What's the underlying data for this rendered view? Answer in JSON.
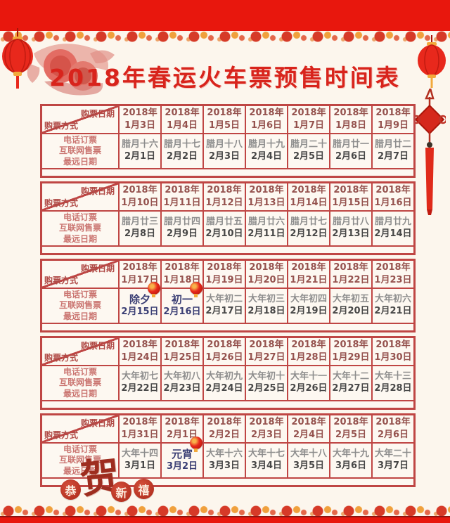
{
  "title": "2018年春运火车票预售时间表",
  "header": {
    "corner_date": "购票日期",
    "corner_method": "购票方式",
    "year_label": "2018年"
  },
  "row_labels": {
    "phone": "电话订票",
    "internet": "互联网售票",
    "farthest": "最远日期"
  },
  "footer_seal": {
    "char1": "恭",
    "char2": "贺",
    "char3": "新",
    "char4": "禧"
  },
  "colors": {
    "band_red": "#e8170d",
    "table_border": "#bf4644",
    "title_red": "#d8241c",
    "header_text": "#95524e",
    "label_text": "#ca7470",
    "lunar_gray": "#8d8d8d",
    "date_dark": "#474747",
    "special_navy": "#3a3e74",
    "background": "#fcf6ed"
  },
  "tables": [
    {
      "buy_dates": [
        "1月3日",
        "1月4日",
        "1月5日",
        "1月6日",
        "1月7日",
        "1月8日",
        "1月9日"
      ],
      "lunar": [
        "腊月十六",
        "腊月十七",
        "腊月十八",
        "腊月十九",
        "腊月二十",
        "腊月廿一",
        "腊月廿二"
      ],
      "farthest": [
        "2月1日",
        "2月2日",
        "2月3日",
        "2月4日",
        "2月5日",
        "2月6日",
        "2月7日"
      ],
      "special": [],
      "lantern": []
    },
    {
      "buy_dates": [
        "1月10日",
        "1月11日",
        "1月12日",
        "1月13日",
        "1月14日",
        "1月15日",
        "1月16日"
      ],
      "lunar": [
        "腊月廿三",
        "腊月廿四",
        "腊月廿五",
        "腊月廿六",
        "腊月廿七",
        "腊月廿八",
        "腊月廿九"
      ],
      "farthest": [
        "2月8日",
        "2月9日",
        "2月10日",
        "2月11日",
        "2月12日",
        "2月13日",
        "2月14日"
      ],
      "special": [],
      "lantern": []
    },
    {
      "buy_dates": [
        "1月17日",
        "1月18日",
        "1月19日",
        "1月20日",
        "1月21日",
        "1月22日",
        "1月23日"
      ],
      "lunar": [
        "除夕",
        "初一",
        "大年初二",
        "大年初三",
        "大年初四",
        "大年初五",
        "大年初六"
      ],
      "farthest": [
        "2月15日",
        "2月16日",
        "2月17日",
        "2月18日",
        "2月19日",
        "2月20日",
        "2月21日"
      ],
      "special": [
        0,
        1
      ],
      "lantern": [
        0,
        1
      ]
    },
    {
      "buy_dates": [
        "1月24日",
        "1月25日",
        "1月26日",
        "1月27日",
        "1月28日",
        "1月29日",
        "1月30日"
      ],
      "lunar": [
        "大年初七",
        "大年初八",
        "大年初九",
        "大年初十",
        "大年十一",
        "大年十二",
        "大年十三"
      ],
      "farthest": [
        "2月22日",
        "2月23日",
        "2月24日",
        "2月25日",
        "2月26日",
        "2月27日",
        "2月28日"
      ],
      "special": [],
      "lantern": []
    },
    {
      "buy_dates": [
        "1月31日",
        "2月1日",
        "2月2日",
        "2月3日",
        "2月4日",
        "2月5日",
        "2月6日"
      ],
      "lunar": [
        "大年十四",
        "元宵",
        "大年十六",
        "大年十七",
        "大年十八",
        "大年十九",
        "大年二十"
      ],
      "farthest": [
        "3月1日",
        "3月2日",
        "3月3日",
        "3月4日",
        "3月5日",
        "3月6日",
        "3月7日"
      ],
      "special": [
        1
      ],
      "lantern": [
        1
      ]
    }
  ]
}
